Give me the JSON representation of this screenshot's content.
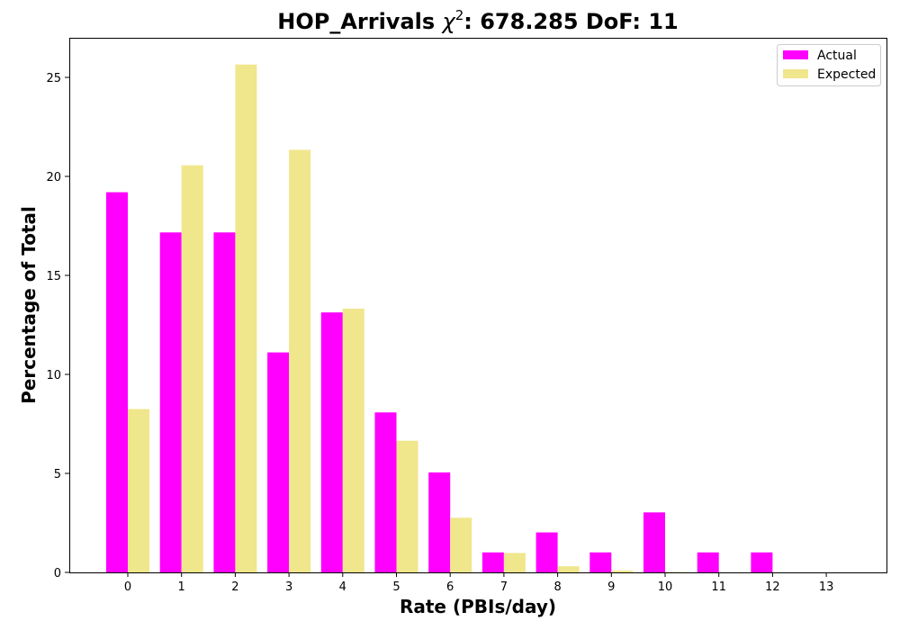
{
  "chart_data": {
    "type": "bar",
    "title": {
      "prefix": "HOP_Arrivals ",
      "chi_symbol": "χ",
      "superscript": "2",
      "suffix": ": 678.285 DoF: 11"
    },
    "xlabel": "Rate (PBIs/day)",
    "ylabel": "Percentage of Total",
    "categories": [
      "0",
      "1",
      "2",
      "3",
      "4",
      "5",
      "6",
      "7",
      "8",
      "9",
      "10",
      "11",
      "12",
      "13"
    ],
    "series": [
      {
        "name": "Actual",
        "color": "#ff00ff",
        "values": [
          19.2,
          17.17,
          17.17,
          11.11,
          13.13,
          8.08,
          5.05,
          1.01,
          2.02,
          1.01,
          3.03,
          1.01,
          1.01,
          0
        ]
      },
      {
        "name": "Expected",
        "color": "#f0e68c",
        "values": [
          8.25,
          20.56,
          25.65,
          21.34,
          13.32,
          6.65,
          2.76,
          0.98,
          0.31,
          0.09,
          0.02,
          0.0,
          0.0,
          0.0
        ]
      }
    ],
    "ylim": [
      0,
      27
    ],
    "yticks": [
      "0",
      "5",
      "10",
      "15",
      "20",
      "25"
    ],
    "ytick_values": [
      0,
      5,
      10,
      15,
      20,
      25
    ],
    "grid": false,
    "legend_position": "top-right"
  }
}
